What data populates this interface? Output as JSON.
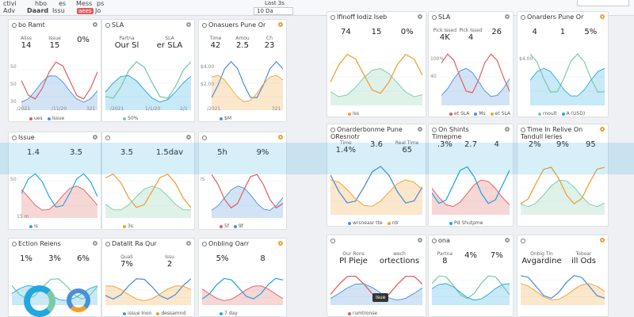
{
  "topbar": {
    "nav": [
      "ctivi",
      "Adv",
      "hbo",
      "Daard",
      "es",
      "Issu",
      "Mess",
      "aees",
      "ps",
      "Jo"
    ],
    "date_label": "Last 3s",
    "date_value": "10 Da"
  },
  "panels": [
    {
      "title": "bo Ramt",
      "kpis": [
        {
          "l": "Aliss",
          "v": "14"
        },
        {
          "l": "Issue",
          "v": "15"
        },
        {
          "l": "",
          "v": "0%"
        }
      ],
      "legend": [
        "ues",
        "Issue"
      ],
      "yticks": [
        "50",
        "50",
        "30"
      ],
      "xticks": [
        "/2021",
        "/11/20",
        "321"
      ]
    },
    {
      "title": "SLA",
      "kpis": [
        {
          "l": "Partna",
          "v": "Our Sl"
        },
        {
          "l": "SLA",
          "v": "er SLA"
        }
      ],
      "legend": [
        "50%"
      ],
      "yticks": [],
      "xticks": [
        "/2021",
        "1/1/20",
        "2/1"
      ]
    },
    {
      "title": "Onasuers Pune Or",
      "kpis": [
        {
          "l": "Time",
          "v": "42"
        },
        {
          "l": "Amou",
          "v": "2.5"
        },
        {
          "l": "Ch",
          "v": "23"
        }
      ],
      "legend": [
        "$M"
      ],
      "yticks": [
        "$4.00",
        "$2.00"
      ],
      "xticks": [
        "/2021",
        "321"
      ]
    },
    {
      "title": "Issue",
      "kpis": [
        {
          "l": "",
          "v": "1.4"
        },
        {
          "l": "",
          "v": "3.5"
        }
      ],
      "legend": [
        "Is"
      ],
      "yticks": [
        "50"
      ],
      "xticks": [
        "15 m"
      ]
    },
    {
      "title": "",
      "kpis": [
        {
          "l": "",
          "v": "3.5"
        },
        {
          "l": "",
          "v": "1.5dav"
        }
      ],
      "legend": [
        "3s"
      ],
      "yticks": [],
      "xticks": []
    },
    {
      "title": "",
      "kpis": [
        {
          "l": "",
          "v": "5h"
        },
        {
          "l": "",
          "v": "9%"
        }
      ],
      "legend": [
        "5f",
        "9f"
      ],
      "yticks": [
        "IS"
      ],
      "xticks": []
    },
    {
      "title": "Ection Reiens",
      "kpis": [
        {
          "l": "",
          "v": "1%"
        },
        {
          "l": "",
          "v": "3%"
        },
        {
          "l": "",
          "v": "6%"
        }
      ],
      "legend": [],
      "yticks": [],
      "xticks": []
    },
    {
      "title": "Datalit Ra Qur",
      "kpis": [
        {
          "l": "Quali",
          "v": "7%"
        },
        {
          "l": "Issu",
          "v": "2"
        }
      ],
      "legend": [
        "issue Inon",
        "dessamnd"
      ],
      "yticks": [],
      "xticks": []
    },
    {
      "title": "Onbling Oarr",
      "kpis": [
        {
          "l": "",
          "v": "5%"
        },
        {
          "l": "",
          "v": "8"
        }
      ],
      "legend": [
        "7 day"
      ],
      "yticks": [],
      "xticks": []
    },
    {
      "title": "Ifinoff Iodiz Iseb",
      "kpis": [
        {
          "l": "",
          "v": "74"
        },
        {
          "l": "",
          "v": "15"
        },
        {
          "l": "",
          "v": "0%"
        }
      ],
      "legend": [
        "Iss"
      ],
      "yticks": [],
      "xticks": []
    },
    {
      "title": "SLA",
      "kpis": [
        {
          "l": "Pick Issed",
          "v": "4K"
        },
        {
          "l": "Pick Issed",
          "v": "4"
        },
        {
          "l": "",
          "v": "26"
        }
      ],
      "legend": [
        "et SLA",
        "Ms",
        "et SLA"
      ],
      "yticks": [
        "100%",
        "40"
      ],
      "xticks": []
    },
    {
      "title": "Onarders Pune Or",
      "kpis": [
        {
          "l": "",
          "v": "4"
        },
        {
          "l": "",
          "v": "1"
        },
        {
          "l": "",
          "v": "5%"
        }
      ],
      "legend": [
        "rnoult",
        "A (USD)"
      ],
      "yticks": [
        "$4.00"
      ],
      "xticks": []
    },
    {
      "title": "Onarderbonme Pune OResnotr",
      "kpis": [
        {
          "l": "Time",
          "v": "1.4%"
        },
        {
          "l": "",
          "v": "3.6"
        },
        {
          "l": "Real Time",
          "v": "65"
        }
      ],
      "legend": [
        "wrsneasr tte",
        "rdr"
      ],
      "yticks": [],
      "xticks": []
    },
    {
      "title": "On Shints Timepme",
      "kpis": [
        {
          "l": "",
          "v": ".3%"
        },
        {
          "l": "",
          "v": "2.7"
        },
        {
          "l": "",
          "v": "4"
        }
      ],
      "legend": [
        "Pd Shutpme"
      ],
      "yticks": [],
      "xticks": []
    },
    {
      "title": "Time In Relive On Tandull Ieries",
      "kpis": [
        {
          "l": "",
          "v": "2%"
        },
        {
          "l": "",
          "v": "9%"
        },
        {
          "l": "",
          "v": "95"
        }
      ],
      "legend": [],
      "yticks": [],
      "xticks": []
    },
    {
      "title": "",
      "kpis": [
        {
          "l": "Our Rons",
          "v": "Pl Pieje"
        },
        {
          "l": "wech",
          "v": "ortections"
        }
      ],
      "legend": [
        "rumtronse"
      ],
      "yticks": [],
      "xticks": []
    },
    {
      "title": "ona",
      "kpis": [
        {
          "l": "Partna",
          "v": "8"
        },
        {
          "l": "",
          "v": "4%"
        },
        {
          "l": "",
          "v": "7%"
        }
      ],
      "legend": [],
      "yticks": [],
      "xticks": []
    },
    {
      "title": "",
      "kpis": [
        {
          "l": "Onbig Tin",
          "v": "Avgardine"
        },
        {
          "l": "Toboar",
          "v": "ill Ods"
        }
      ],
      "legend": [],
      "yticks": [],
      "xticks": []
    }
  ],
  "tooltip": "Isue",
  "colors": {
    "accent": "#22a8e0",
    "red": "#e05d5d",
    "teal": "#7ccaa8",
    "blue": "#4a90d9",
    "orange": "#f0a030"
  }
}
